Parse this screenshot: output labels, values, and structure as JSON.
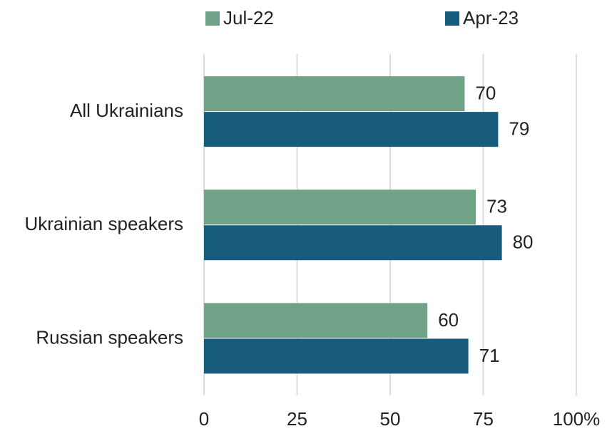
{
  "chart_data": {
    "type": "bar",
    "categories": [
      "All Ukrainians",
      "Ukrainian speakers",
      "Russian speakers"
    ],
    "series": [
      {
        "name": "Jul-22",
        "color": "#6fa287",
        "values": [
          70,
          73,
          60
        ]
      },
      {
        "name": "Apr-23",
        "color": "#175c7c",
        "values": [
          79,
          80,
          71
        ]
      }
    ],
    "xlim": [
      0,
      100
    ],
    "xticks": [
      0,
      25,
      50,
      75,
      {
        "value": 100,
        "label": "100%"
      }
    ],
    "grid": true
  }
}
